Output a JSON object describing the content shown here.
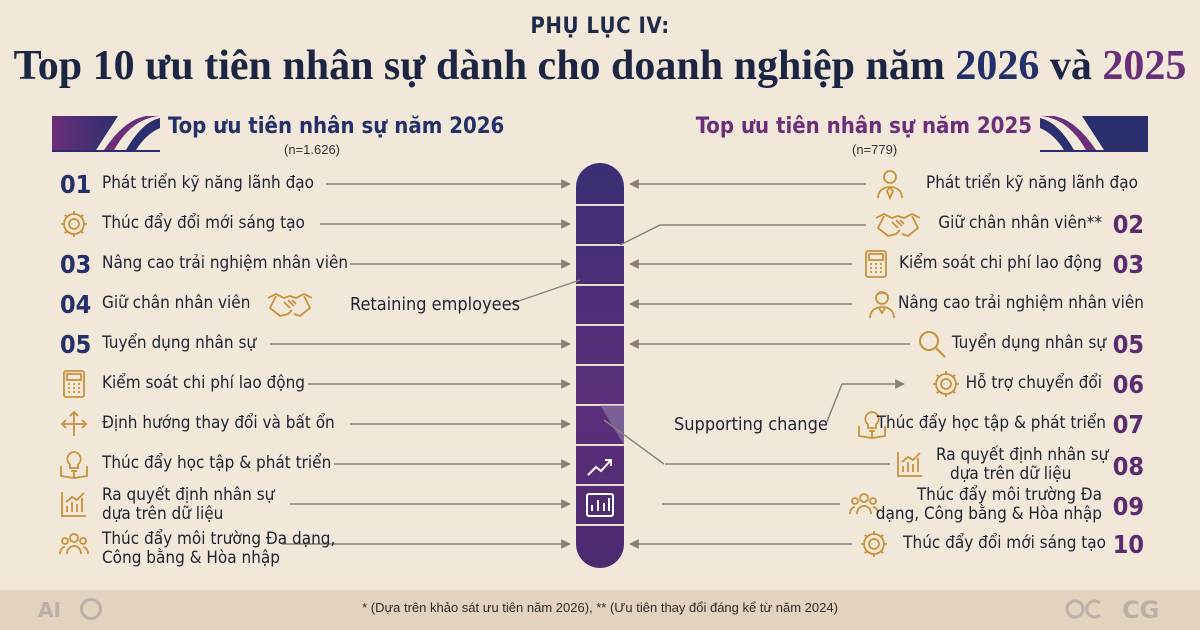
{
  "title": {
    "supertitle": "PHỤ LỤC IV:",
    "main_prefix": "Top 10 ưu tiên nhân sự dành cho doanh nghiệp năm ",
    "year_a": "2026",
    "connector": " và ",
    "year_b": "2025"
  },
  "left_panel": {
    "header": "Top ưu tiên nhân sự năm 2026",
    "sample": "(n=1.626)",
    "items": [
      {
        "rank": "01",
        "label": "Phát triển kỹ năng lãnh đạo",
        "icon": "none"
      },
      {
        "rank": "",
        "label": "Thúc đẩy đổi mới sáng tạo",
        "icon": "gear-icon"
      },
      {
        "rank": "03",
        "label": "Nâng cao trải nghiệm nhân viên",
        "icon": "none"
      },
      {
        "rank": "04",
        "label": "Giữ chân nhân viên",
        "icon": "handshake-icon"
      },
      {
        "rank": "05",
        "label": "Tuyển dụng nhân sự",
        "icon": "none"
      },
      {
        "rank": "",
        "label": "Kiểm soát chi phí lao động",
        "icon": "calculator-icon"
      },
      {
        "rank": "",
        "label": "Định hướng thay đổi và bất ổn",
        "icon": "arrows-icon"
      },
      {
        "rank": "",
        "label": "Thúc đẩy học tập & phát triển",
        "icon": "lightbulb-book-icon"
      },
      {
        "rank": "",
        "label_line1": "Ra quyết định nhân sự",
        "label_line2": "dựa trên dữ liệu",
        "icon": "bar-chart-icon"
      },
      {
        "rank": "",
        "label_line1": "Thúc đẩy môi trường Đa dạng,",
        "label_line2": "Công bằng & Hòa nhập",
        "icon": "people-icon"
      }
    ]
  },
  "right_panel": {
    "header": "Top ưu tiên nhân sự năm 2025",
    "sample": "(n=779)",
    "items": [
      {
        "rank": "",
        "label": "Phát triển kỹ năng lãnh đạo",
        "icon": "leader-icon"
      },
      {
        "rank": "02",
        "label": "Giữ chân nhân viên**",
        "icon": "handshake-icon"
      },
      {
        "rank": "03",
        "label": "Kiểm soát chi phí lao động",
        "icon": "calculator-icon"
      },
      {
        "rank": "",
        "label": "Nâng cao trải nghiệm nhân viên",
        "icon": "employee-icon"
      },
      {
        "rank": "05",
        "label": "Tuyển dụng nhân sự",
        "icon": "magnifier-icon"
      },
      {
        "rank": "06",
        "label": "Hỗ trợ chuyển đổi",
        "icon": "gear-icon"
      },
      {
        "rank": "07",
        "label": "Thúc đẩy học tập & phát triển",
        "icon": "lightbulb-book-icon"
      },
      {
        "rank": "08",
        "label_line1": "Ra quyết định nhân sự",
        "label_line2": "dựa trên dữ liệu",
        "icon": "bar-chart-icon"
      },
      {
        "rank": "09",
        "label_line1": "Thúc đẩy môi trường Đa",
        "label_line2": "dạng, Công bằng & Hòa nhập",
        "icon": "people-icon"
      },
      {
        "rank": "10",
        "label": "Thúc đẩy đổi mới sáng tạo",
        "icon": "gear-icon"
      }
    ]
  },
  "center_notes": {
    "retaining": "Retaining employees",
    "supporting": "Supporting change"
  },
  "footer": {
    "footnote": "* (Dựa trên khảo sát ưu tiên năm 2026), ** (Ưu tiên thay đổi đáng kể từ năm 2024)",
    "logo_left": "AI",
    "logo_right": "CG"
  },
  "colors": {
    "navy": "#23306a",
    "purple": "#6b2e78",
    "gold": "#c9913a",
    "background": "#f1e8d9"
  }
}
